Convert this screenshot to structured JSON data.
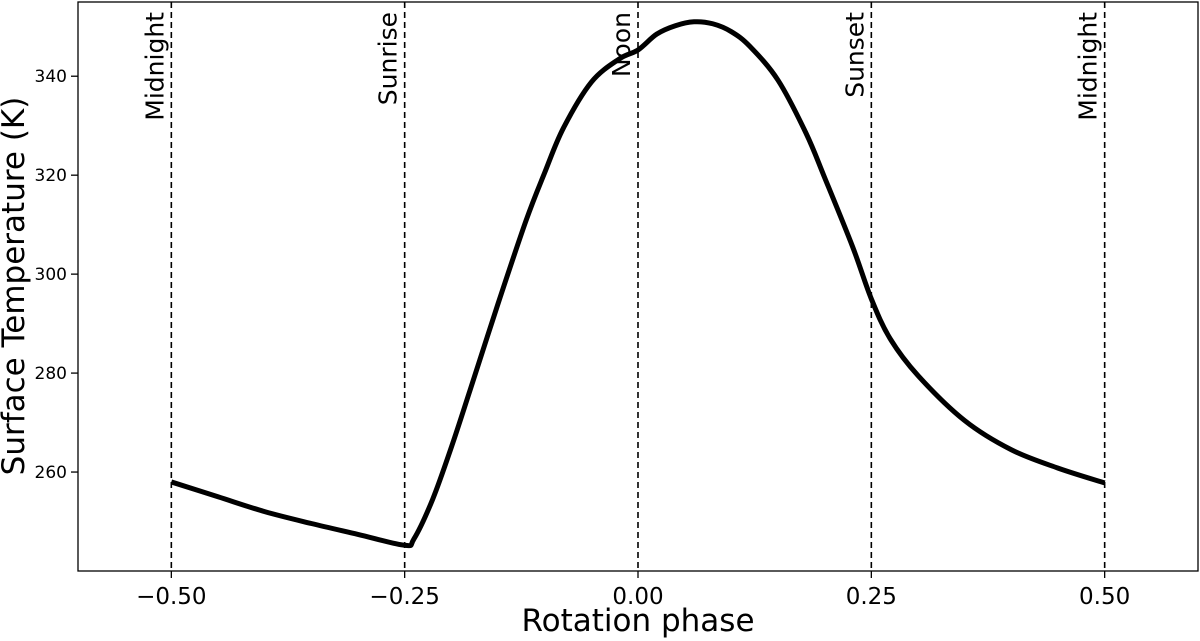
{
  "chart_data": {
    "type": "line",
    "xlabel": "Rotation phase",
    "ylabel": "Surface Temperature (K)",
    "xlim": [
      -0.6,
      0.6
    ],
    "ylim": [
      240,
      355
    ],
    "x_ticks": [
      -0.5,
      -0.25,
      0.0,
      0.25,
      0.5
    ],
    "x_tick_labels": [
      "−0.50",
      "−0.25",
      "0.00",
      "0.25",
      "0.50"
    ],
    "y_ticks": [
      260,
      280,
      300,
      320,
      340
    ],
    "y_tick_labels": [
      "260",
      "280",
      "300",
      "320",
      "340"
    ],
    "grid": false,
    "vertical_markers": [
      {
        "x": -0.5,
        "label": "Midnight"
      },
      {
        "x": -0.25,
        "label": "Sunrise"
      },
      {
        "x": 0.0,
        "label": "Noon"
      },
      {
        "x": 0.25,
        "label": "Sunset"
      },
      {
        "x": 0.5,
        "label": "Midnight"
      }
    ],
    "series": [
      {
        "color": "#000000",
        "x": [
          -0.5,
          -0.45,
          -0.4,
          -0.35,
          -0.3,
          -0.25,
          -0.24,
          -0.22,
          -0.2,
          -0.18,
          -0.15,
          -0.12,
          -0.1,
          -0.08,
          -0.05,
          -0.02,
          0.0,
          0.02,
          0.04,
          0.06,
          0.08,
          0.1,
          0.12,
          0.15,
          0.18,
          0.2,
          0.23,
          0.25,
          0.27,
          0.3,
          0.35,
          0.4,
          0.45,
          0.5
        ],
        "y": [
          258,
          255,
          252,
          249.6,
          247.4,
          245.2,
          246.5,
          254.5,
          265,
          276.5,
          294,
          310.8,
          320.5,
          329.5,
          338.8,
          343.5,
          345.3,
          348.5,
          350.2,
          351,
          350.6,
          349,
          346,
          339.2,
          328.5,
          319.5,
          305.5,
          295,
          287,
          279.5,
          270.4,
          264.5,
          260.8,
          257.8
        ]
      }
    ]
  }
}
